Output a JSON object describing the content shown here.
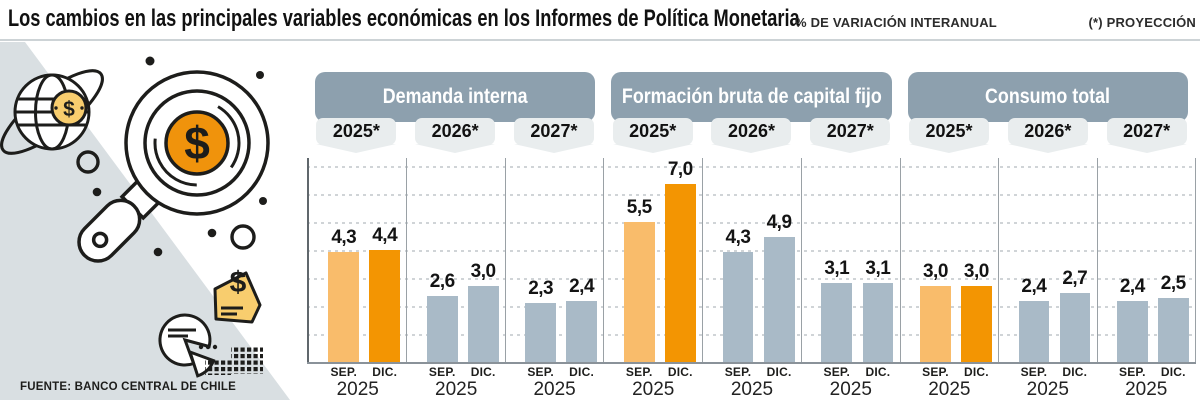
{
  "header": {
    "title": "Los cambios en las principales variables económicas en los Informes de Política Monetaria",
    "subtitle": "% DE VARIACIÓN INTERANUAL",
    "note": "(*) PROYECCIÓN"
  },
  "source": "FUENTE: BANCO CENTRAL DE CHILE",
  "illustration_icons": [
    "globe-icon",
    "dollar-coin-icon",
    "magnifier-dollar-icon",
    "receipt-money-icon",
    "pie-chart-icon",
    "coin-grid-icon"
  ],
  "chart_data": {
    "type": "bar",
    "title": "Los cambios en las principales variables económicas en los Informes de Política Monetaria",
    "ylabel": "% de variación interanual",
    "ylim": [
      0,
      8
    ],
    "grid": "dashed-horizontal",
    "legend_position": "none",
    "series_labels": [
      "SEP.",
      "DIC."
    ],
    "x_year": "2025",
    "groups": [
      {
        "title": "Demanda interna",
        "years": [
          {
            "label": "2025*",
            "values": [
              4.3,
              4.4
            ]
          },
          {
            "label": "2026*",
            "values": [
              2.6,
              3.0
            ]
          },
          {
            "label": "2027*",
            "values": [
              2.3,
              2.4
            ]
          }
        ]
      },
      {
        "title": "Formación bruta de capital fijo",
        "years": [
          {
            "label": "2025*",
            "values": [
              5.5,
              7.0
            ]
          },
          {
            "label": "2026*",
            "values": [
              4.3,
              4.9
            ]
          },
          {
            "label": "2027*",
            "values": [
              3.1,
              3.1
            ]
          }
        ]
      },
      {
        "title": "Consumo total",
        "years": [
          {
            "label": "2025*",
            "values": [
              3.0,
              3.0
            ]
          },
          {
            "label": "2026*",
            "values": [
              2.4,
              2.7
            ]
          },
          {
            "label": "2027*",
            "values": [
              2.4,
              2.5
            ]
          }
        ]
      }
    ],
    "colors": {
      "sep_2025": "#f9bc6b",
      "dic_2025": "#f39502",
      "projection_gray": "#a9bac7",
      "header_band": "#8da0ae",
      "tab_bg": "#e9edee",
      "accent_orange": "#f0930c",
      "illustration_gray": "#d9dfe2"
    }
  }
}
